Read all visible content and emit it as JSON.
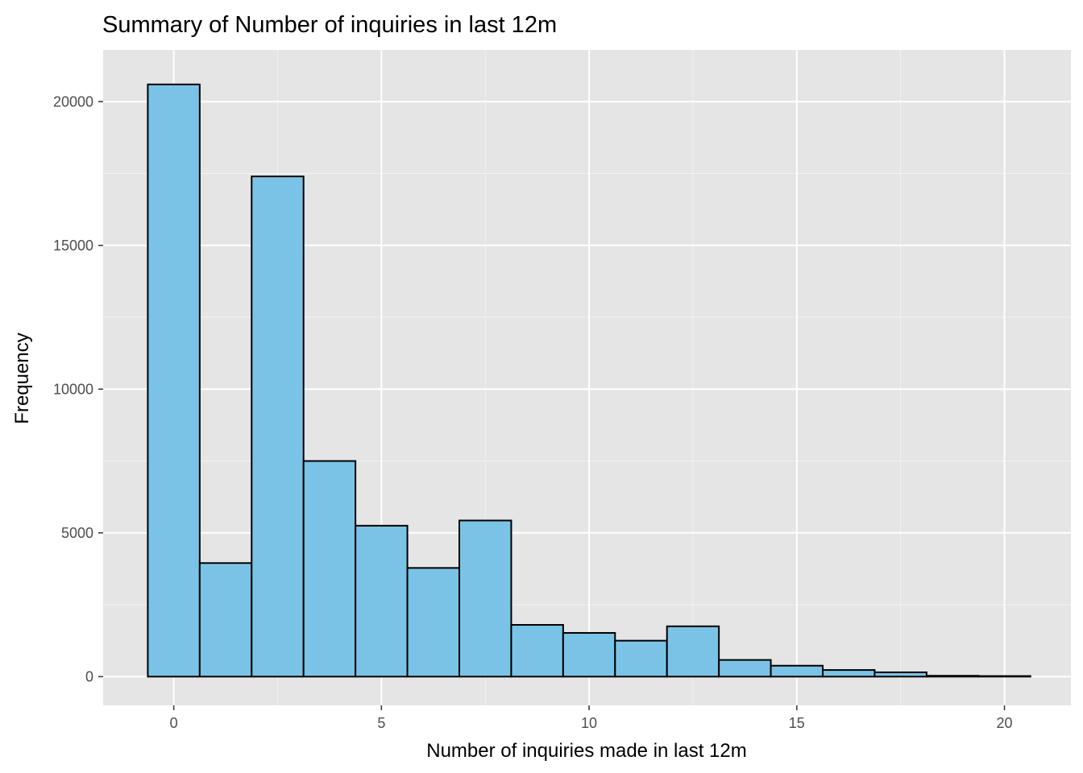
{
  "chart_data": {
    "type": "bar",
    "subtype": "histogram",
    "title": "Summary of Number of inquiries in last 12m",
    "xlabel": "Number of inquiries made in last 12m",
    "ylabel": "Frequency",
    "xlim": [
      -1.7,
      21.6
    ],
    "ylim": [
      -1000,
      21800
    ],
    "x_ticks": [
      0,
      5,
      10,
      15,
      20
    ],
    "y_ticks": [
      0,
      5000,
      10000,
      15000,
      20000
    ],
    "bin_width": 1.25,
    "bins": [
      {
        "start": -0.625,
        "end": 0.625,
        "count": 20600
      },
      {
        "start": 0.625,
        "end": 1.875,
        "count": 3950
      },
      {
        "start": 1.875,
        "end": 3.125,
        "count": 17400
      },
      {
        "start": 3.125,
        "end": 4.375,
        "count": 7500
      },
      {
        "start": 4.375,
        "end": 5.625,
        "count": 5250
      },
      {
        "start": 5.625,
        "end": 6.875,
        "count": 3780
      },
      {
        "start": 6.875,
        "end": 8.125,
        "count": 5430
      },
      {
        "start": 8.125,
        "end": 9.375,
        "count": 1800
      },
      {
        "start": 9.375,
        "end": 10.625,
        "count": 1520
      },
      {
        "start": 10.625,
        "end": 11.875,
        "count": 1250
      },
      {
        "start": 11.875,
        "end": 13.125,
        "count": 1750
      },
      {
        "start": 13.125,
        "end": 14.375,
        "count": 580
      },
      {
        "start": 14.375,
        "end": 15.625,
        "count": 380
      },
      {
        "start": 15.625,
        "end": 16.875,
        "count": 230
      },
      {
        "start": 16.875,
        "end": 18.125,
        "count": 150
      },
      {
        "start": 18.125,
        "end": 19.375,
        "count": 30
      },
      {
        "start": 19.375,
        "end": 20.625,
        "count": 20
      }
    ],
    "grid": true,
    "colors": {
      "bar_fill": "#7ac3e6",
      "bar_stroke": "#000000",
      "panel_background": "#e5e5e5",
      "grid_major": "#ffffff",
      "grid_minor": "#f2f2f2"
    }
  }
}
